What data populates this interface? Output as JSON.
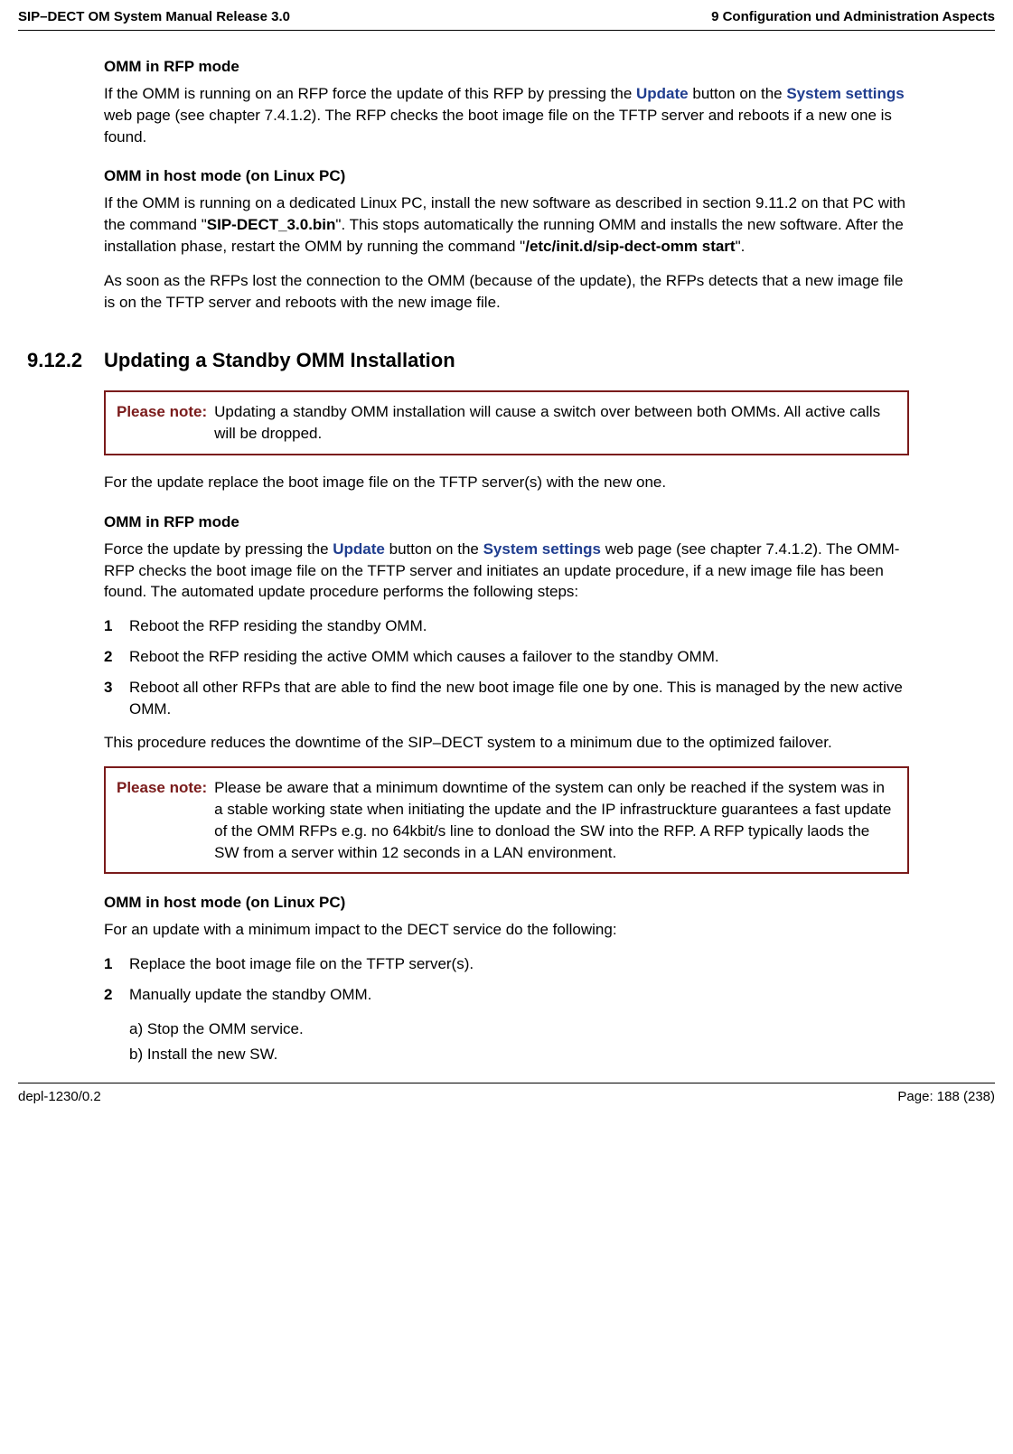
{
  "header": {
    "left": "SIP–DECT OM System Manual Release 3.0",
    "right": "9 Configuration und Administration Aspects"
  },
  "footer": {
    "left": "depl-1230/0.2",
    "right": "Page: 188 (238)"
  },
  "colors": {
    "link": "#1f3d8f",
    "note_border": "#7a1b1b",
    "note_label": "#7a1b1b"
  },
  "sec1": {
    "h1": "OMM in RFP mode",
    "p1_a": "If the OMM is running on an RFP force the update of this RFP by pressing the ",
    "p1_link1": "Update",
    "p1_b": " button on the ",
    "p1_link2": "System settings",
    "p1_c": " web page (see chapter 7.4.1.2). The RFP checks the boot image file on the TFTP server and reboots if a new one is found.",
    "h2": "OMM in host mode (on Linux PC)",
    "p2_a": "If the OMM is running on a dedicated Linux PC, install the new software as described in section 9.11.2 on that PC with the command \"",
    "p2_bold1": "SIP-DECT_3.0.bin",
    "p2_b": "\". This stops automatically the running OMM and installs the new software. After the installation phase, restart the OMM by running the command \"",
    "p2_bold2": "/etc/init.d/sip-dect-omm start",
    "p2_c": "\".",
    "p3": "As soon as the RFPs lost the connection to the OMM (because of the update), the RFPs detects that a new image file is on the TFTP server and reboots with the new image file."
  },
  "sec2": {
    "num": "9.12.2",
    "title": "Updating a Standby OMM Installation",
    "note1_label": "Please note:",
    "note1_text": "Updating a standby OMM installation will cause a switch over between both OMMs. All active calls will be dropped.",
    "p1": "For the update replace the boot image file on the TFTP server(s) with the new one.",
    "h1": "OMM in RFP mode",
    "p2_a": "Force the update by pressing the ",
    "p2_link1": "Update",
    "p2_b": " button on the ",
    "p2_link2": "System settings",
    "p2_c": " web page (see chapter 7.4.1.2). The OMM-RFP checks the boot image file on the TFTP server and initiates an update procedure, if a new image file has been found. The automated update procedure performs the following steps:",
    "list1": [
      {
        "n": "1",
        "t": "Reboot the RFP residing the standby OMM."
      },
      {
        "n": "2",
        "t": "Reboot the RFP residing the active OMM which causes a failover to the standby OMM."
      },
      {
        "n": "3",
        "t": "Reboot all other RFPs that are able to find the new boot image file one by one. This is managed by the new active OMM."
      }
    ],
    "p3": "This procedure reduces the downtime of the SIP–DECT system to a minimum due to the optimized failover.",
    "note2_label": "Please note:",
    "note2_text": "Please be aware that a minimum downtime of the system can only be reached if the system was in a stable working state when initiating the update and the IP infrastruckture guarantees a fast update of the OMM RFPs e.g. no 64kbit/s line to donload the SW into the RFP. A RFP typically laods the SW from a server within 12 seconds in a LAN environment.",
    "h2": "OMM in host mode (on Linux PC)",
    "p4": "For an update with a minimum impact to the DECT service do the following:",
    "list2": [
      {
        "n": "1",
        "t": "Replace the boot image file on the TFTP server(s)."
      },
      {
        "n": "2",
        "t": "Manually update the standby OMM."
      }
    ],
    "sub_a": "a) Stop the OMM service.",
    "sub_b": "b) Install the new SW."
  }
}
